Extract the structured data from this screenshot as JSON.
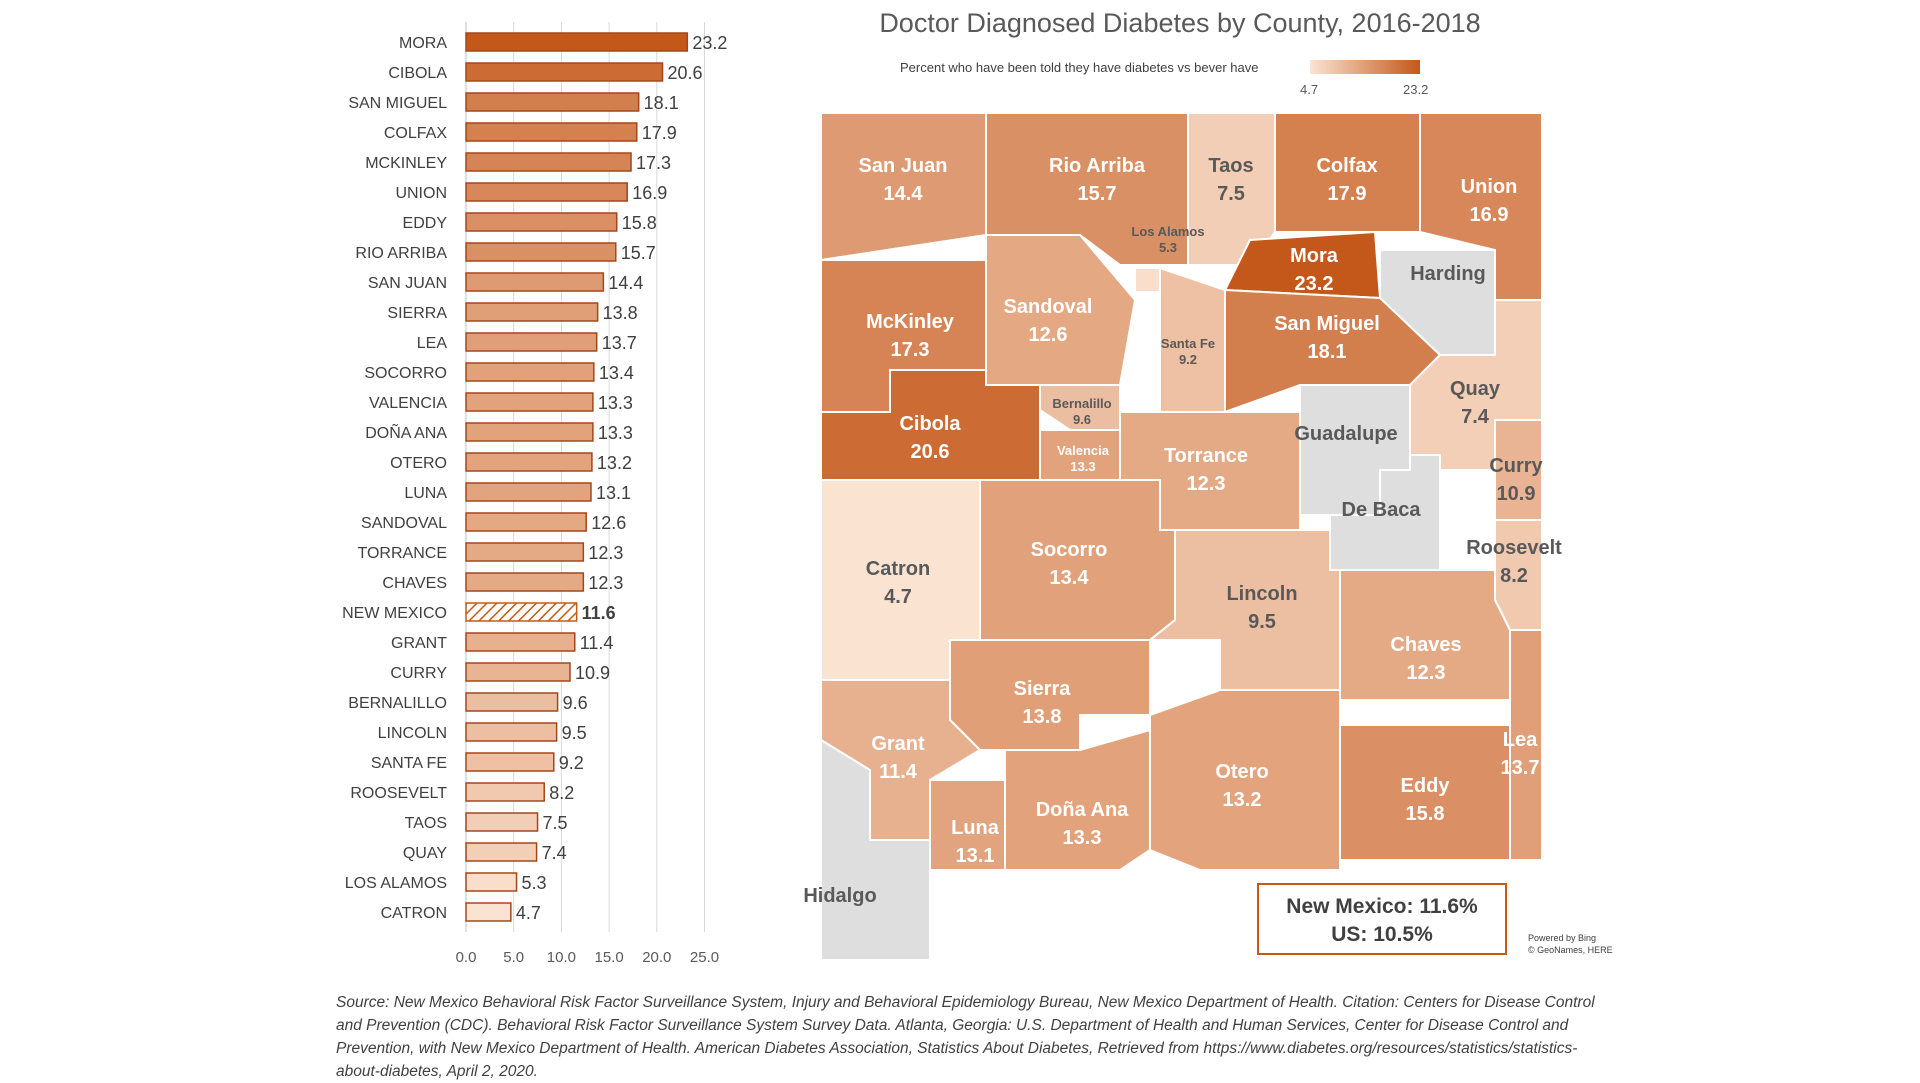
{
  "colors": {
    "min": "#fbe3d2",
    "max": "#c4581a",
    "missing": "#dedede",
    "border": "#a5461a",
    "box_border": "#c55a11"
  },
  "chart_data": {
    "type": "bar",
    "orientation": "horizontal",
    "categories": [
      "MORA",
      "CIBOLA",
      "SAN MIGUEL",
      "COLFAX",
      "MCKINLEY",
      "UNION",
      "EDDY",
      "RIO ARRIBA",
      "SAN JUAN",
      "SIERRA",
      "LEA",
      "SOCORRO",
      "VALENCIA",
      "DOÑA ANA",
      "OTERO",
      "LUNA",
      "SANDOVAL",
      "TORRANCE",
      "CHAVES",
      "NEW MEXICO",
      "GRANT",
      "CURRY",
      "BERNALILLO",
      "LINCOLN",
      "SANTA FE",
      "ROOSEVELT",
      "TAOS",
      "QUAY",
      "LOS ALAMOS",
      "CATRON"
    ],
    "values": [
      23.2,
      20.6,
      18.1,
      17.9,
      17.3,
      16.9,
      15.8,
      15.7,
      14.4,
      13.8,
      13.7,
      13.4,
      13.3,
      13.3,
      13.2,
      13.1,
      12.6,
      12.3,
      12.3,
      11.6,
      11.4,
      10.9,
      9.6,
      9.5,
      9.2,
      8.2,
      7.5,
      7.4,
      5.3,
      4.7
    ],
    "highlight": "NEW MEXICO",
    "xlim": [
      0,
      25
    ],
    "xticks": [
      "0.0",
      "5.0",
      "10.0",
      "15.0",
      "20.0",
      "25.0"
    ],
    "grid": true
  },
  "map": {
    "title": "Doctor Diagnosed Diabetes by County, 2016-2018",
    "legend_label": "Percent who have been told they have diabetes vs bever have",
    "legend_min": "4.7",
    "legend_max": "23.2",
    "counties": [
      {
        "name": "San Juan",
        "value": "14.4"
      },
      {
        "name": "Rio Arriba",
        "value": "15.7"
      },
      {
        "name": "Taos",
        "value": "7.5"
      },
      {
        "name": "Colfax",
        "value": "17.9"
      },
      {
        "name": "Union",
        "value": "16.9"
      },
      {
        "name": "Los Alamos",
        "value": "5.3"
      },
      {
        "name": "Mora",
        "value": "23.2"
      },
      {
        "name": "Harding",
        "value": ""
      },
      {
        "name": "McKinley",
        "value": "17.3"
      },
      {
        "name": "Sandoval",
        "value": "12.6"
      },
      {
        "name": "Santa Fe",
        "value": "9.2"
      },
      {
        "name": "San Miguel",
        "value": "18.1"
      },
      {
        "name": "Quay",
        "value": "7.4"
      },
      {
        "name": "Cibola",
        "value": "20.6"
      },
      {
        "name": "Bernalillo",
        "value": "9.6"
      },
      {
        "name": "Valencia",
        "value": "13.3"
      },
      {
        "name": "Guadalupe",
        "value": ""
      },
      {
        "name": "Torrance",
        "value": "12.3"
      },
      {
        "name": "Curry",
        "value": "10.9"
      },
      {
        "name": "De Baca",
        "value": ""
      },
      {
        "name": "Roosevelt",
        "value": "8.2"
      },
      {
        "name": "Catron",
        "value": "4.7"
      },
      {
        "name": "Socorro",
        "value": "13.4"
      },
      {
        "name": "Lincoln",
        "value": "9.5"
      },
      {
        "name": "Chaves",
        "value": "12.3"
      },
      {
        "name": "Sierra",
        "value": "13.8"
      },
      {
        "name": "Grant",
        "value": "11.4"
      },
      {
        "name": "Lea",
        "value": "13.7"
      },
      {
        "name": "Otero",
        "value": "13.2"
      },
      {
        "name": "Eddy",
        "value": "15.8"
      },
      {
        "name": "Luna",
        "value": "13.1"
      },
      {
        "name": "Doña Ana",
        "value": "13.3"
      },
      {
        "name": "Hidalgo",
        "value": ""
      }
    ],
    "summary_nm": "New Mexico: 11.6%",
    "summary_us": "US: 10.5%",
    "powered_line1": "Powered by Bing",
    "powered_line2": "© GeoNames, HERE"
  },
  "source": "Source: New Mexico Behavioral Risk Factor Surveillance System, Injury and Behavioral Epidemiology Bureau, New Mexico Department of Health. Citation: Centers for Disease Control and Prevention (CDC). Behavioral Risk Factor Surveillance System Survey Data. Atlanta, Georgia: U.S. Department of Health and Human Services, Center for Disease Control and Prevention, with New Mexico Department of Health.  American Diabetes Association, Statistics About Diabetes, Retrieved from https://www.diabetes.org/resources/statistics/statistics-about-diabetes, April 2, 2020."
}
